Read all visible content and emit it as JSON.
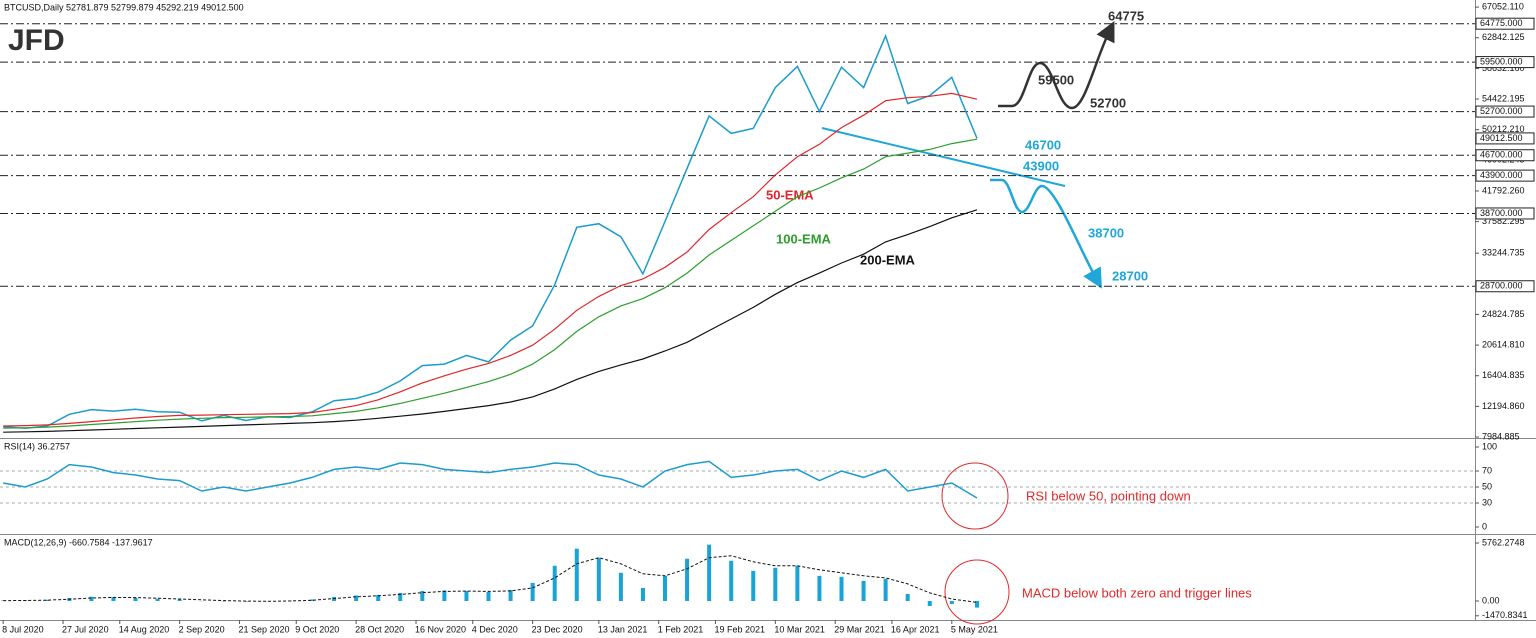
{
  "logo": "JFD",
  "chart_data": [
    {
      "type": "line",
      "title": "BTCUSD,Daily  52781.879 52799.879 45292.219 49012.500",
      "x": [
        "2020-07-08",
        "2020-07-15",
        "2020-07-22",
        "2020-07-29",
        "2020-08-05",
        "2020-08-12",
        "2020-08-19",
        "2020-08-26",
        "2020-09-02",
        "2020-09-09",
        "2020-09-16",
        "2020-09-23",
        "2020-09-30",
        "2020-10-07",
        "2020-10-14",
        "2020-10-21",
        "2020-10-28",
        "2020-11-04",
        "2020-11-11",
        "2020-11-18",
        "2020-11-25",
        "2020-12-02",
        "2020-12-09",
        "2020-12-16",
        "2020-12-23",
        "2020-12-30",
        "2021-01-06",
        "2021-01-13",
        "2021-01-20",
        "2021-01-27",
        "2021-02-03",
        "2021-02-10",
        "2021-02-17",
        "2021-02-24",
        "2021-03-03",
        "2021-03-10",
        "2021-03-17",
        "2021-03-24",
        "2021-03-31",
        "2021-04-07",
        "2021-04-14",
        "2021-04-21",
        "2021-04-28",
        "2021-05-05",
        "2021-05-13"
      ],
      "xlim": [
        "2020-07-07",
        "2021-10-18"
      ],
      "ylim": [
        7850,
        68030
      ],
      "yticks": [
        {
          "value": 67052.11,
          "label": "67052.110"
        },
        {
          "value": 62842.125,
          "label": "62842.125"
        },
        {
          "value": 58632.16,
          "label": "58632.160"
        },
        {
          "value": 54422.195,
          "label": "54422.195"
        },
        {
          "value": 50212.21,
          "label": "50212.210"
        },
        {
          "value": 46002.245,
          "label": "46002.245"
        },
        {
          "value": 41792.26,
          "label": "41792.260"
        },
        {
          "value": 37582.295,
          "label": "37582.295"
        },
        {
          "value": 33244.735,
          "label": "33244.735"
        },
        {
          "value": 24824.785,
          "label": "24824.785"
        },
        {
          "value": 20614.81,
          "label": "20614.810"
        },
        {
          "value": 16404.835,
          "label": "16404.835"
        },
        {
          "value": 12194.86,
          "label": "12194.860"
        },
        {
          "value": 7984.885,
          "label": "7984.885"
        }
      ],
      "series": [
        {
          "color": "#1c9ccc",
          "values": [
            9400,
            9200,
            9500,
            11100,
            11750,
            11550,
            11800,
            11450,
            11400,
            10200,
            10950,
            10250,
            10780,
            10670,
            11430,
            12980,
            13280,
            14150,
            15700,
            17800,
            18000,
            19200,
            18300,
            21300,
            23250,
            28900,
            36800,
            37300,
            35500,
            30400,
            37600,
            44900,
            52100,
            49700,
            50400,
            56000,
            58900,
            52700,
            58800,
            56000,
            63100,
            53800,
            54900,
            57400,
            49012.5
          ]
        },
        {
          "name": "50-EMA",
          "color": "#e0262b",
          "values": [
            9500,
            9550,
            9650,
            9850,
            10100,
            10350,
            10600,
            10800,
            10950,
            11000,
            11050,
            11100,
            11150,
            11200,
            11350,
            11800,
            12300,
            13100,
            14200,
            15400,
            16400,
            17300,
            18100,
            19200,
            20600,
            22800,
            25400,
            27300,
            28800,
            29700,
            31300,
            33400,
            36500,
            38800,
            41000,
            44000,
            46500,
            48200,
            50500,
            52200,
            54200,
            54600,
            54800,
            55200,
            54400
          ]
        },
        {
          "name": "100-EMA",
          "color": "#2e9e2e",
          "values": [
            9200,
            9250,
            9350,
            9500,
            9700,
            9900,
            10100,
            10300,
            10450,
            10550,
            10650,
            10700,
            10750,
            10800,
            10900,
            11200,
            11500,
            12000,
            12600,
            13300,
            14000,
            14800,
            15600,
            16600,
            18000,
            20000,
            22500,
            24500,
            26000,
            27000,
            28500,
            30500,
            33000,
            35000,
            37000,
            39000,
            41000,
            42200,
            43600,
            44800,
            46500,
            47000,
            47500,
            48300,
            48900
          ]
        },
        {
          "name": "200-EMA",
          "color": "#111111",
          "values": [
            8650,
            8700,
            8750,
            8850,
            8950,
            9050,
            9150,
            9250,
            9350,
            9450,
            9550,
            9650,
            9750,
            9850,
            9950,
            10100,
            10300,
            10550,
            10850,
            11150,
            11500,
            11900,
            12300,
            12800,
            13500,
            14600,
            15900,
            17000,
            17900,
            18700,
            19800,
            21000,
            22600,
            24200,
            25800,
            27600,
            29200,
            30500,
            31900,
            33100,
            34800,
            35800,
            36900,
            38100,
            39200
          ]
        }
      ],
      "levels": [
        {
          "value": 64775,
          "label": "64775.000"
        },
        {
          "value": 59500,
          "label": "59500.000"
        },
        {
          "value": 52700,
          "label": "52700.000"
        },
        {
          "value": 46700,
          "label": "46700.000"
        },
        {
          "value": 43900,
          "label": "43900.000"
        },
        {
          "value": 38700,
          "label": "38700.000"
        },
        {
          "value": 28700,
          "label": "28700.000"
        }
      ],
      "current_price": {
        "value": 49012.5,
        "label": "49012.500"
      },
      "scenario_labels": [
        64775,
        59500,
        52700,
        46700,
        43900,
        38700,
        28700
      ]
    },
    {
      "type": "line",
      "title": "RSI(14) 36.2757",
      "x": [
        "2020-07-08",
        "2020-07-15",
        "2020-07-22",
        "2020-07-29",
        "2020-08-05",
        "2020-08-12",
        "2020-08-19",
        "2020-08-26",
        "2020-09-02",
        "2020-09-09",
        "2020-09-16",
        "2020-09-23",
        "2020-09-30",
        "2020-10-07",
        "2020-10-14",
        "2020-10-21",
        "2020-10-28",
        "2020-11-04",
        "2020-11-11",
        "2020-11-18",
        "2020-11-25",
        "2020-12-02",
        "2020-12-09",
        "2020-12-16",
        "2020-12-23",
        "2020-12-30",
        "2021-01-06",
        "2021-01-13",
        "2021-01-20",
        "2021-01-27",
        "2021-02-03",
        "2021-02-10",
        "2021-02-17",
        "2021-02-24",
        "2021-03-03",
        "2021-03-10",
        "2021-03-17",
        "2021-03-24",
        "2021-03-31",
        "2021-04-07",
        "2021-04-14",
        "2021-04-21",
        "2021-04-28",
        "2021-05-05",
        "2021-05-13"
      ],
      "xlim": [
        "2020-07-07",
        "2021-10-18"
      ],
      "ylim": [
        -7.5,
        111.25
      ],
      "yticks": [
        100,
        70,
        50,
        30,
        0
      ],
      "levels": [
        70,
        50,
        30
      ],
      "series": [
        {
          "color": "#1c9ccc",
          "values": [
            55,
            50,
            60,
            78,
            75,
            68,
            65,
            60,
            58,
            45,
            50,
            45,
            50,
            55,
            62,
            72,
            75,
            72,
            80,
            78,
            72,
            70,
            68,
            72,
            75,
            80,
            78,
            65,
            60,
            50,
            70,
            78,
            82,
            62,
            65,
            70,
            72,
            58,
            70,
            62,
            72,
            45,
            50,
            55,
            36.2757
          ]
        }
      ],
      "annotation": "RSI below 50, pointing down"
    },
    {
      "type": "bar",
      "title": "MACD(12,26,9) -660.7584 -137.9617",
      "x": [
        "2020-07-08",
        "2020-07-15",
        "2020-07-22",
        "2020-07-29",
        "2020-08-05",
        "2020-08-12",
        "2020-08-19",
        "2020-08-26",
        "2020-09-02",
        "2020-09-09",
        "2020-09-16",
        "2020-09-23",
        "2020-09-30",
        "2020-10-07",
        "2020-10-14",
        "2020-10-21",
        "2020-10-28",
        "2020-11-04",
        "2020-11-11",
        "2020-11-18",
        "2020-11-25",
        "2020-12-02",
        "2020-12-09",
        "2020-12-16",
        "2020-12-23",
        "2020-12-30",
        "2021-01-06",
        "2021-01-13",
        "2021-01-20",
        "2021-01-27",
        "2021-02-03",
        "2021-02-10",
        "2021-02-17",
        "2021-02-24",
        "2021-03-03",
        "2021-03-10",
        "2021-03-17",
        "2021-03-24",
        "2021-03-31",
        "2021-04-07",
        "2021-04-14",
        "2021-04-21",
        "2021-04-28",
        "2021-05-05",
        "2021-05-13"
      ],
      "xlim": [
        "2020-07-07",
        "2021-10-18"
      ],
      "ylim": [
        -1890,
        6560
      ],
      "yticks": [
        5762.2748,
        {
          "value": 0,
          "label": "0.00"
        },
        -1470.8341
      ],
      "color": "#1aa3d6",
      "values": [
        50,
        60,
        120,
        300,
        420,
        380,
        300,
        220,
        150,
        -20,
        -40,
        -60,
        -20,
        50,
        150,
        400,
        550,
        600,
        800,
        1000,
        1050,
        1000,
        900,
        1100,
        1800,
        3500,
        5200,
        4300,
        2800,
        1300,
        2500,
        4200,
        5600,
        4000,
        3000,
        3300,
        3500,
        2500,
        2400,
        2000,
        2200,
        700,
        -500,
        -300,
        -660.7584
      ],
      "signal": {
        "color": "#111111",
        "values": [
          40,
          50,
          80,
          180,
          300,
          360,
          340,
          280,
          200,
          120,
          40,
          -10,
          -30,
          0,
          70,
          250,
          420,
          520,
          650,
          820,
          950,
          980,
          950,
          1000,
          1300,
          2300,
          3700,
          4300,
          3700,
          2700,
          2500,
          3200,
          4300,
          4500,
          3900,
          3500,
          3500,
          3100,
          2800,
          2500,
          2300,
          1700,
          800,
          200,
          -137.9617
        ]
      },
      "xticks": [
        {
          "value": "2020-07-08",
          "label": "8 Jul 2020"
        },
        {
          "value": "2020-07-27",
          "label": "27 Jul 2020"
        },
        {
          "value": "2020-08-14",
          "label": "14 Aug 2020"
        },
        {
          "value": "2020-09-02",
          "label": "2 Sep 2020"
        },
        {
          "value": "2020-09-21",
          "label": "21 Sep 2020"
        },
        {
          "value": "2020-10-09",
          "label": "9 Oct 2020"
        },
        {
          "value": "2020-10-28",
          "label": "28 Oct 2020"
        },
        {
          "value": "2020-11-16",
          "label": "16 Nov 2020"
        },
        {
          "value": "2020-12-04",
          "label": "4 Dec 2020"
        },
        {
          "value": "2020-12-23",
          "label": "23 Dec 2020"
        },
        {
          "value": "2021-01-13",
          "label": "13 Jan 2021"
        },
        {
          "value": "2021-02-01",
          "label": "1 Feb 2021"
        },
        {
          "value": "2021-02-19",
          "label": "19 Feb 2021"
        },
        {
          "value": "2021-03-10",
          "label": "10 Mar 2021"
        },
        {
          "value": "2021-03-29",
          "label": "29 Mar 2021"
        },
        {
          "value": "2021-04-16",
          "label": "16 Apr 2021"
        },
        {
          "value": "2021-05-05",
          "label": "5 May 2021"
        }
      ],
      "annotation": "MACD below both zero and trigger lines"
    }
  ]
}
